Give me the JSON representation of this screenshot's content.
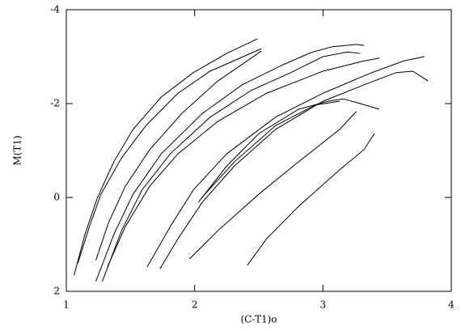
{
  "chart_data": {
    "type": "line",
    "xlabel": "(C-T1)o",
    "ylabel": "M(T1)",
    "xlim": [
      1,
      4
    ],
    "ylim": [
      2,
      -4
    ],
    "xticks": [
      1,
      2,
      3,
      4
    ],
    "yticks": [
      2,
      0,
      -2,
      -4
    ],
    "color": "#000000",
    "series": [
      {
        "x": [
          1.06,
          1.145,
          1.24,
          1.37,
          1.52,
          1.74,
          1.99,
          2.25,
          2.49
        ],
        "values": [
          1.66,
          0.79,
          0.02,
          -0.76,
          -1.45,
          -2.14,
          -2.66,
          -3.07,
          -3.38
        ]
      },
      {
        "x": [
          1.09,
          1.18,
          1.27,
          1.43,
          1.62,
          1.87,
          2.12,
          2.52
        ],
        "values": [
          1.4,
          0.62,
          -0.07,
          -0.84,
          -1.53,
          -2.22,
          -2.69,
          -3.17
        ]
      },
      {
        "x": [
          1.23,
          1.33,
          1.46,
          1.65,
          1.9,
          2.18,
          2.52
        ],
        "values": [
          1.34,
          0.53,
          -0.24,
          -1.02,
          -1.79,
          -2.48,
          -3.12
        ]
      },
      {
        "x": [
          1.23,
          1.37,
          1.52,
          1.74,
          2.06,
          2.37,
          2.69,
          2.91,
          3.07,
          3.26,
          3.32
        ],
        "values": [
          1.79,
          0.79,
          -0.07,
          -0.93,
          -1.79,
          -2.4,
          -2.83,
          -3.09,
          -3.21,
          -3.26,
          -3.24
        ]
      },
      {
        "x": [
          1.28,
          1.43,
          1.59,
          1.81,
          2.12,
          2.44,
          2.75,
          3.0,
          3.19,
          3.29
        ],
        "values": [
          1.79,
          0.71,
          -0.16,
          -0.93,
          -1.71,
          -2.28,
          -2.66,
          -3.0,
          -3.1,
          -3.07
        ]
      },
      {
        "x": [
          1.32,
          1.46,
          1.65,
          1.87,
          2.18,
          2.56,
          3.0,
          3.32,
          3.44
        ],
        "values": [
          1.48,
          0.62,
          -0.24,
          -0.93,
          -1.62,
          -2.22,
          -2.69,
          -2.91,
          -2.97
        ]
      },
      {
        "x": [
          1.63,
          1.81,
          1.99,
          2.25,
          2.63,
          3.0,
          3.38,
          3.63,
          3.79
        ],
        "values": [
          1.48,
          0.62,
          -0.16,
          -0.93,
          -1.71,
          -2.22,
          -2.66,
          -2.91,
          -3.0
        ]
      },
      {
        "x": [
          1.73,
          1.87,
          2.06,
          2.31,
          2.63,
          3.0,
          3.32,
          3.57,
          3.7,
          3.82
        ],
        "values": [
          1.52,
          0.88,
          0.1,
          -0.67,
          -1.45,
          -2.05,
          -2.4,
          -2.66,
          -2.69,
          -2.48
        ]
      },
      {
        "x": [
          2.03,
          2.25,
          2.5,
          2.81,
          3.04,
          3.16,
          3.29,
          3.44
        ],
        "values": [
          0.1,
          -0.67,
          -1.36,
          -1.88,
          -2.05,
          -2.1,
          -2.0,
          -1.88
        ]
      },
      {
        "x": [
          2.05,
          2.31,
          2.63,
          2.94,
          3.13
        ],
        "values": [
          0.02,
          -0.76,
          -1.53,
          -1.97,
          -2.05
        ]
      },
      {
        "x": [
          1.96,
          2.18,
          2.5,
          2.81,
          3.13,
          3.26
        ],
        "values": [
          1.31,
          0.71,
          -0.07,
          -0.76,
          -1.45,
          -1.83
        ]
      },
      {
        "x": [
          2.41,
          2.56,
          2.81,
          3.13,
          3.32,
          3.4
        ],
        "values": [
          1.45,
          0.88,
          0.19,
          -0.59,
          -1.02,
          -1.36
        ]
      }
    ]
  }
}
